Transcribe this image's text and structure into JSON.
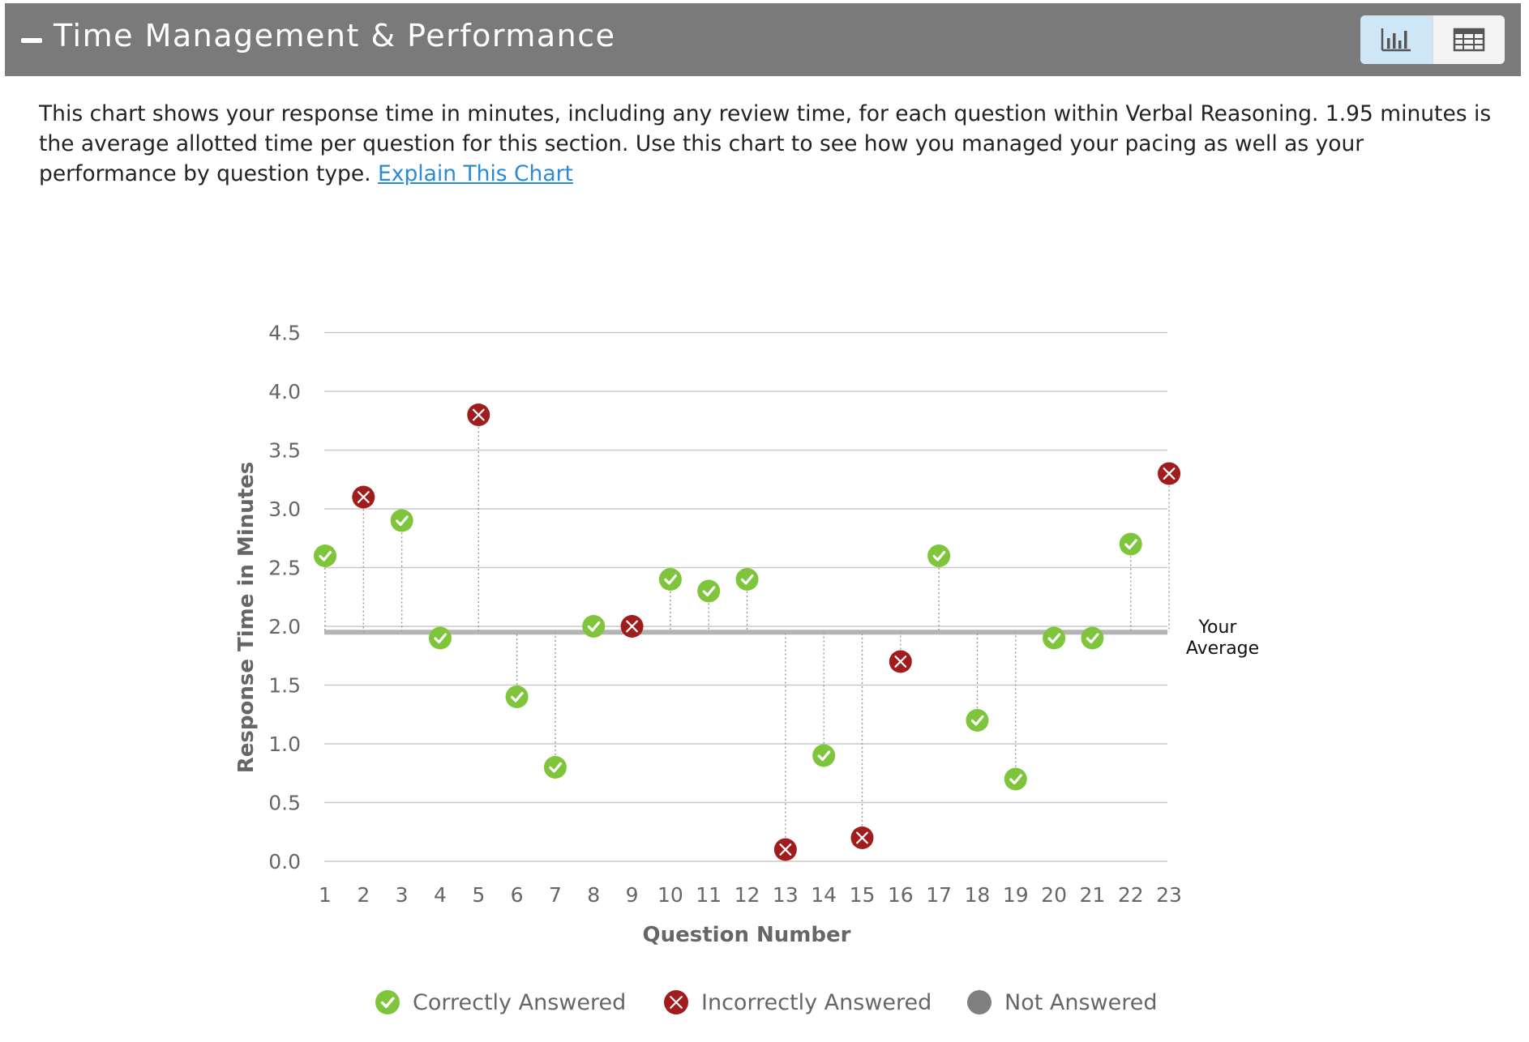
{
  "header": {
    "title": "Time Management & Performance"
  },
  "view_toggle": {
    "chart_icon": "bar-chart-icon",
    "table_icon": "table-grid-icon"
  },
  "description": {
    "text": "This chart shows your response time in minutes, including any review time, for each question within Verbal Reasoning. 1.95 minutes is the average allotted time per question for this section. Use this chart to see how you managed your pacing as well as your performance by question type. ",
    "link": "Explain This Chart"
  },
  "colors": {
    "correct": "#7ec53b",
    "incorrect": "#a11c1c",
    "not_answered": "#808080",
    "header": "#7a7a7a",
    "average_line": "#b4b4b4"
  },
  "chart_data": {
    "type": "scatter",
    "xlabel": "Question Number",
    "ylabel": "Response Time in Minutes",
    "categories": [
      1,
      2,
      3,
      4,
      5,
      6,
      7,
      8,
      9,
      10,
      11,
      12,
      13,
      14,
      15,
      16,
      17,
      18,
      19,
      20,
      21,
      22,
      23
    ],
    "ylim": [
      0,
      4.5
    ],
    "yticks": [
      "0.0",
      "0.5",
      "1.0",
      "1.5",
      "2.0",
      "2.5",
      "3.0",
      "3.5",
      "4.0",
      "4.5"
    ],
    "grid": true,
    "average": {
      "value": 1.95,
      "label_line1": "Your",
      "label_line2": "Average"
    },
    "points": [
      {
        "q": 1,
        "time": 2.6,
        "status": "correct"
      },
      {
        "q": 2,
        "time": 3.1,
        "status": "incorrect"
      },
      {
        "q": 3,
        "time": 2.9,
        "status": "correct"
      },
      {
        "q": 4,
        "time": 1.9,
        "status": "correct"
      },
      {
        "q": 5,
        "time": 3.8,
        "status": "incorrect"
      },
      {
        "q": 6,
        "time": 1.4,
        "status": "correct"
      },
      {
        "q": 7,
        "time": 0.8,
        "status": "correct"
      },
      {
        "q": 8,
        "time": 2.0,
        "status": "correct"
      },
      {
        "q": 9,
        "time": 2.0,
        "status": "incorrect"
      },
      {
        "q": 10,
        "time": 2.4,
        "status": "correct"
      },
      {
        "q": 11,
        "time": 2.3,
        "status": "correct"
      },
      {
        "q": 12,
        "time": 2.4,
        "status": "correct"
      },
      {
        "q": 13,
        "time": 0.1,
        "status": "incorrect"
      },
      {
        "q": 14,
        "time": 0.9,
        "status": "correct"
      },
      {
        "q": 15,
        "time": 0.2,
        "status": "incorrect"
      },
      {
        "q": 16,
        "time": 1.7,
        "status": "incorrect"
      },
      {
        "q": 17,
        "time": 2.6,
        "status": "correct"
      },
      {
        "q": 18,
        "time": 1.2,
        "status": "correct"
      },
      {
        "q": 19,
        "time": 0.7,
        "status": "correct"
      },
      {
        "q": 20,
        "time": 1.9,
        "status": "correct"
      },
      {
        "q": 21,
        "time": 1.9,
        "status": "correct"
      },
      {
        "q": 22,
        "time": 2.7,
        "status": "correct"
      },
      {
        "q": 23,
        "time": 3.3,
        "status": "incorrect"
      }
    ],
    "legend": [
      {
        "key": "correct",
        "label": "Correctly Answered"
      },
      {
        "key": "incorrect",
        "label": "Incorrectly Answered"
      },
      {
        "key": "not_answered",
        "label": "Not Answered"
      }
    ],
    "legend_position": "bottom"
  }
}
